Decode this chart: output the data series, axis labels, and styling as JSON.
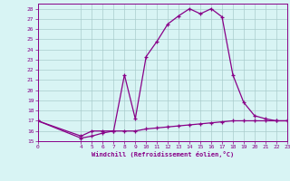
{
  "xlabel": "Windchill (Refroidissement éolien,°C)",
  "line1_x": [
    0,
    4,
    5,
    6,
    7,
    8,
    9,
    10,
    11,
    12,
    13,
    14,
    15,
    16,
    17,
    18,
    19,
    20,
    21,
    22,
    23
  ],
  "line1_y": [
    17.0,
    15.5,
    16.0,
    16.0,
    16.0,
    21.5,
    17.2,
    23.3,
    24.8,
    26.5,
    27.3,
    28.0,
    27.5,
    28.0,
    27.2,
    21.5,
    18.8,
    17.5,
    17.2,
    17.0,
    17.0
  ],
  "line2_x": [
    0,
    4,
    5,
    6,
    7,
    8,
    9,
    10,
    11,
    12,
    13,
    14,
    15,
    16,
    17,
    18,
    19,
    20,
    21,
    22,
    23
  ],
  "line2_y": [
    17.0,
    15.3,
    15.5,
    15.8,
    16.0,
    16.0,
    16.0,
    16.2,
    16.3,
    16.4,
    16.5,
    16.6,
    16.7,
    16.8,
    16.9,
    17.0,
    17.0,
    17.0,
    17.0,
    17.0,
    17.0
  ],
  "line_color": "#880088",
  "bg_color": "#d8f4f4",
  "grid_color": "#aacccc",
  "ylim": [
    15,
    28.5
  ],
  "xlim": [
    0,
    23
  ],
  "yticks": [
    15,
    16,
    17,
    18,
    19,
    20,
    21,
    22,
    23,
    24,
    25,
    26,
    27,
    28
  ],
  "xticks": [
    0,
    4,
    5,
    6,
    7,
    8,
    9,
    10,
    11,
    12,
    13,
    14,
    15,
    16,
    17,
    18,
    19,
    20,
    21,
    22,
    23
  ]
}
